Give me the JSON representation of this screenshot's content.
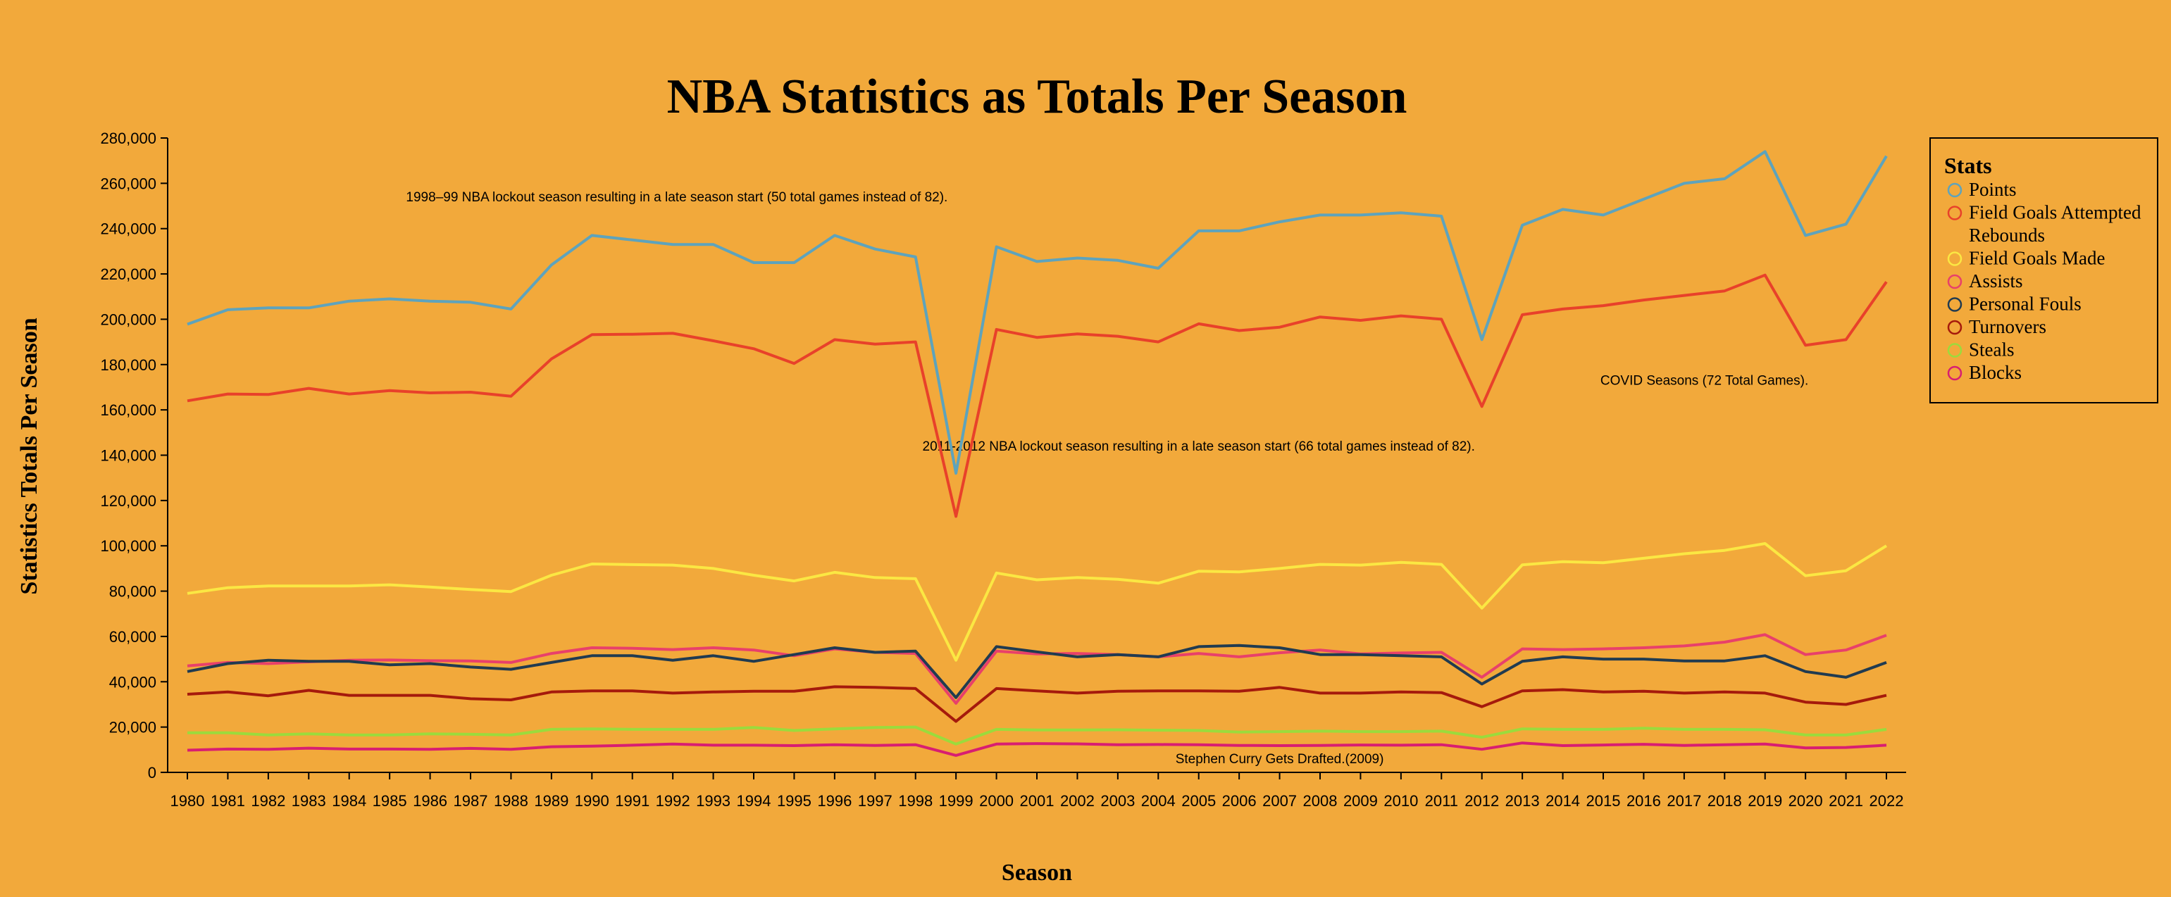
{
  "chart_data": {
    "type": "line",
    "title": "NBA Statistics as Totals Per Season",
    "xlabel": "Season",
    "ylabel": "Statistics Totals Per Season",
    "ylim": [
      0,
      280000
    ],
    "yticks": [
      0,
      20000,
      40000,
      60000,
      80000,
      100000,
      120000,
      140000,
      160000,
      180000,
      200000,
      220000,
      240000,
      260000,
      280000
    ],
    "ytick_labels": [
      "0",
      "20,000",
      "40,000",
      "60,000",
      "80,000",
      "100,000",
      "120,000",
      "140,000",
      "160,000",
      "180,000",
      "200,000",
      "220,000",
      "240,000",
      "260,000",
      "280,000"
    ],
    "grid": false,
    "background": "#F2A93B",
    "x": [
      1980,
      1981,
      1982,
      1983,
      1984,
      1985,
      1986,
      1987,
      1988,
      1989,
      1990,
      1991,
      1992,
      1993,
      1994,
      1995,
      1996,
      1997,
      1998,
      1999,
      2000,
      2001,
      2002,
      2003,
      2004,
      2005,
      2006,
      2007,
      2008,
      2009,
      2010,
      2011,
      2012,
      2013,
      2014,
      2015,
      2016,
      2017,
      2018,
      2019,
      2020,
      2021,
      2022
    ],
    "legend": {
      "title": "Stats",
      "placement": "right",
      "items": [
        {
          "name": "Points",
          "color": "#5EA3BC",
          "marker": true
        },
        {
          "name": "Field Goals Attempted",
          "color": "#E8412A",
          "marker": true
        },
        {
          "name": "Rebounds",
          "color": "#F2A93B",
          "marker": false
        },
        {
          "name": "Field Goals Made",
          "color": "#FBE743",
          "marker": true
        },
        {
          "name": "Assists",
          "color": "#E8406A",
          "marker": true
        },
        {
          "name": "Personal Fouls",
          "color": "#213B50",
          "marker": true
        },
        {
          "name": "Turnovers",
          "color": "#A51A0C",
          "marker": true
        },
        {
          "name": "Steals",
          "color": "#9BDB3C",
          "marker": true
        },
        {
          "name": "Blocks",
          "color": "#D81E71",
          "marker": true
        }
      ]
    },
    "series": [
      {
        "name": "Points",
        "color": "#5EA3BC",
        "values": [
          197800,
          204200,
          205000,
          205000,
          208000,
          209000,
          208000,
          207500,
          204500,
          224000,
          237000,
          235000,
          233000,
          233000,
          225000,
          225000,
          237000,
          231000,
          227500,
          132000,
          232000,
          225500,
          227000,
          226000,
          222500,
          239000,
          239000,
          243000,
          246000,
          246000,
          247000,
          245500,
          191000,
          241500,
          248500,
          246000,
          253000,
          260000,
          262000,
          274000,
          237000,
          242000,
          272000
        ]
      },
      {
        "name": "Field Goals Attempted",
        "color": "#E8412A",
        "values": [
          164000,
          167000,
          166800,
          169500,
          167000,
          168500,
          167500,
          167800,
          166000,
          182500,
          193200,
          193400,
          193800,
          190500,
          187000,
          180500,
          191000,
          189000,
          190000,
          113000,
          195500,
          192000,
          193500,
          192500,
          190000,
          198000,
          195000,
          196500,
          201000,
          199500,
          201500,
          200000,
          161500,
          202000,
          204500,
          206000,
          208500,
          210500,
          212500,
          219500,
          188500,
          191000,
          216500
        ]
      },
      {
        "name": "Field Goals Made",
        "color": "#FBE743",
        "values": [
          79000,
          81500,
          82300,
          82300,
          82300,
          82800,
          81800,
          80700,
          79800,
          87000,
          92000,
          91700,
          91500,
          90000,
          87000,
          84500,
          88300,
          86000,
          85500,
          49500,
          88000,
          85000,
          86000,
          85200,
          83500,
          88800,
          88500,
          90000,
          91800,
          91500,
          92700,
          91800,
          72500,
          91600,
          93000,
          92500,
          94500,
          96500,
          98000,
          101000,
          86800,
          89000,
          100000
        ]
      },
      {
        "name": "Assists",
        "color": "#E8406A",
        "values": [
          47000,
          48500,
          48000,
          48800,
          49500,
          49600,
          49300,
          49200,
          48500,
          52500,
          55000,
          54800,
          54200,
          55000,
          54000,
          51500,
          54500,
          53000,
          52500,
          30500,
          53500,
          52300,
          52500,
          52000,
          51000,
          52500,
          51000,
          52800,
          54000,
          52300,
          52700,
          53000,
          42000,
          54500,
          54200,
          54500,
          55000,
          55800,
          57500,
          60800,
          52000,
          54000,
          60500
        ]
      },
      {
        "name": "Personal Fouls",
        "color": "#213B50",
        "values": [
          44500,
          48000,
          49500,
          49000,
          49000,
          47500,
          48000,
          46500,
          45500,
          48500,
          51500,
          51500,
          49500,
          51500,
          49000,
          52000,
          55000,
          53000,
          53500,
          33000,
          55500,
          53200,
          51000,
          52000,
          51000,
          55500,
          56000,
          55000,
          52000,
          52000,
          51500,
          51000,
          39000,
          49000,
          51000,
          50000,
          50000,
          49200,
          49200,
          51500,
          44500,
          42000,
          48500
        ]
      },
      {
        "name": "Turnovers",
        "color": "#A51A0C",
        "values": [
          34500,
          35500,
          33800,
          36200,
          34000,
          34000,
          34000,
          32500,
          32000,
          35500,
          36000,
          36000,
          35000,
          35500,
          35800,
          35800,
          37800,
          37500,
          37000,
          22500,
          37000,
          36000,
          35000,
          35800,
          36000,
          36000,
          35800,
          37500,
          35000,
          35000,
          35500,
          35200,
          29000,
          36000,
          36500,
          35500,
          35800,
          35000,
          35500,
          35000,
          31000,
          30000,
          34000
        ]
      },
      {
        "name": "Steals",
        "color": "#9BDB3C",
        "values": [
          17500,
          17500,
          16500,
          17000,
          16500,
          16500,
          17000,
          16800,
          16500,
          19000,
          19200,
          19000,
          19000,
          19000,
          19800,
          18500,
          19200,
          19800,
          20000,
          12500,
          19000,
          18700,
          18700,
          18800,
          18600,
          18500,
          17800,
          18000,
          18200,
          18000,
          18000,
          18200,
          15500,
          19200,
          19000,
          19000,
          19500,
          19000,
          19000,
          18800,
          16500,
          16500,
          19000
        ]
      },
      {
        "name": "Blocks",
        "color": "#D81E71",
        "values": [
          9800,
          10300,
          10200,
          10700,
          10300,
          10300,
          10200,
          10600,
          10200,
          11300,
          11600,
          12000,
          12500,
          12000,
          12000,
          11800,
          12200,
          11900,
          12200,
          7500,
          12500,
          12700,
          12600,
          12200,
          12300,
          12200,
          11900,
          11800,
          11900,
          12100,
          12000,
          12200,
          10200,
          13000,
          11800,
          12100,
          12400,
          11900,
          12200,
          12500,
          10800,
          11000,
          12000
        ]
      }
    ],
    "annotations": [
      {
        "text": "1998–99 NBA lockout season resulting in a late season start (50 total games instead of 82).",
        "x": 1992.1,
        "y": 252000
      },
      {
        "text": "COVID Seasons (72 Total Games).",
        "x": 2017.5,
        "y": 171000
      },
      {
        "text": "2011-2012 NBA lockout season resulting in a late season start (66 total games instead of 82).",
        "x": 2005.0,
        "y": 142000
      },
      {
        "text": "Stephen Curry Gets Drafted.(2009)",
        "x": 2007.0,
        "y": 4000
      }
    ]
  }
}
